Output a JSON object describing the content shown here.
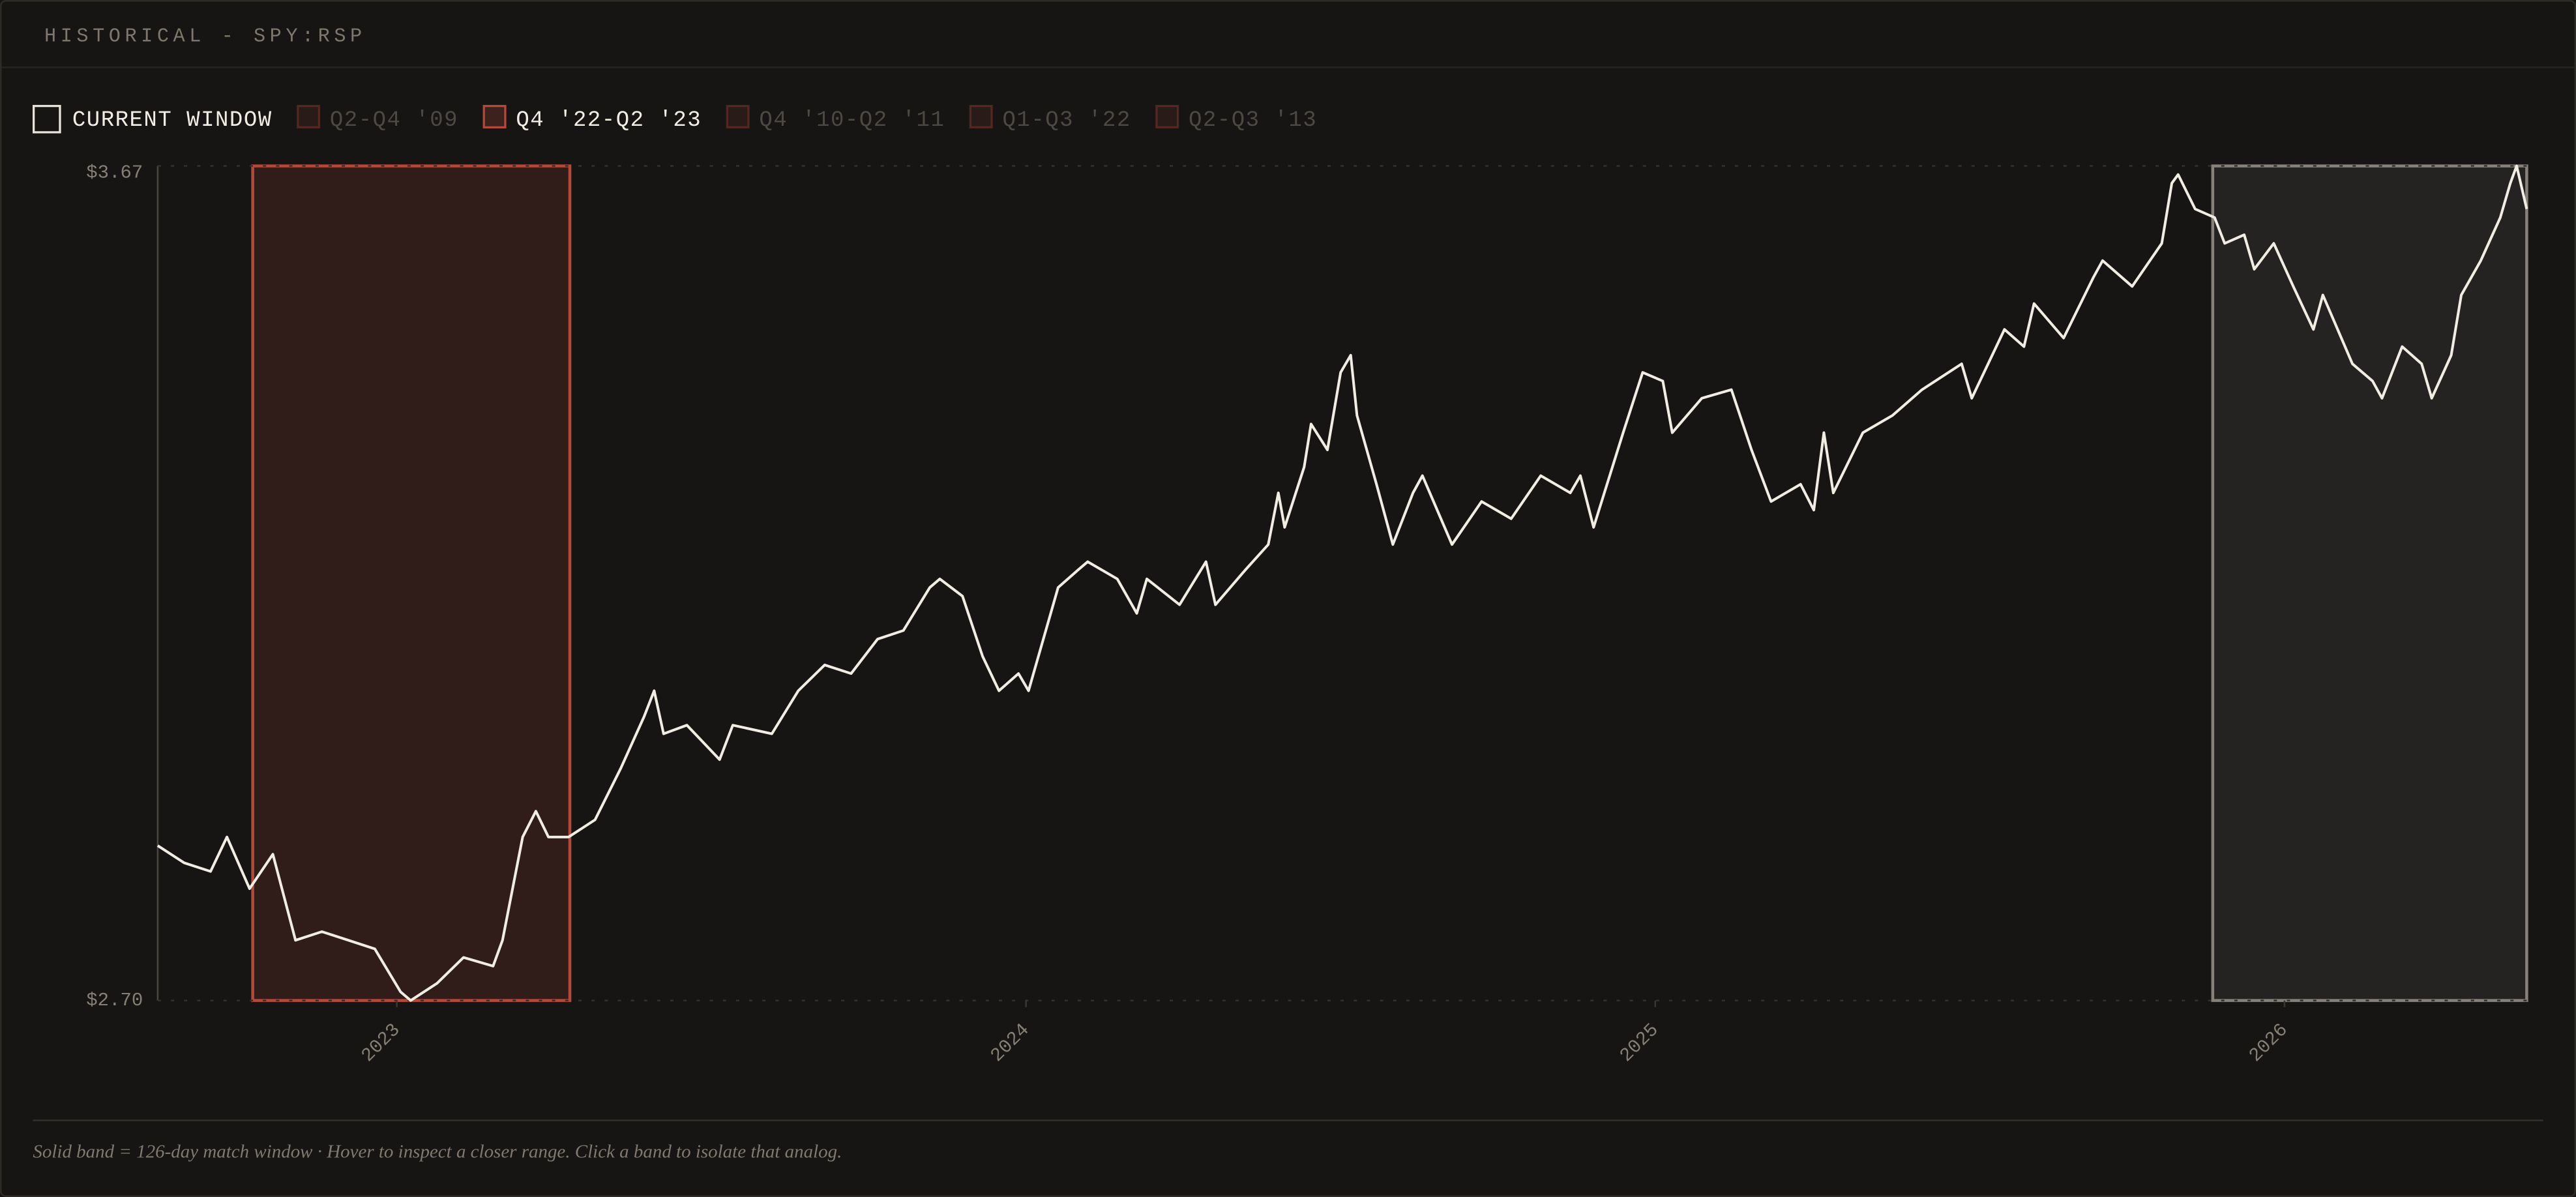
{
  "header": {
    "title": "HISTORICAL - SPY:RSP"
  },
  "chart_data": {
    "type": "line",
    "color": "#f2ede4",
    "grid": true,
    "ylim": [
      2.7,
      3.67
    ],
    "yticks": [
      {
        "value": 2.7,
        "label": "$2.70"
      },
      {
        "value": 3.67,
        "label": "$3.67"
      }
    ],
    "xlim": [
      2022.62,
      2026.385
    ],
    "xticks": [
      2023,
      2024,
      2025,
      2026
    ],
    "x": [
      2022.62,
      2022.662,
      2022.704,
      2022.73,
      2022.766,
      2022.803,
      2022.839,
      2022.881,
      2022.923,
      2022.965,
      2023.006,
      2023.022,
      2023.064,
      2023.106,
      2023.153,
      2023.168,
      2023.2,
      2023.221,
      2023.241,
      2023.273,
      2023.315,
      2023.356,
      2023.393,
      2023.409,
      2023.424,
      2023.461,
      2023.513,
      2023.534,
      2023.596,
      2023.638,
      2023.68,
      2023.722,
      2023.764,
      2023.805,
      2023.847,
      2023.863,
      2023.899,
      2023.931,
      2023.957,
      2023.988,
      2024.004,
      2024.051,
      2024.082,
      2024.098,
      2024.145,
      2024.176,
      2024.192,
      2024.244,
      2024.286,
      2024.301,
      2024.348,
      2024.385,
      2024.401,
      2024.411,
      2024.442,
      2024.453,
      2024.479,
      2024.5,
      2024.516,
      2024.526,
      2024.557,
      2024.583,
      2024.615,
      2024.63,
      2024.677,
      2024.724,
      2024.771,
      2024.818,
      2024.865,
      2024.881,
      2024.902,
      2024.949,
      2024.98,
      2025.012,
      2025.027,
      2025.074,
      2025.121,
      2025.153,
      2025.184,
      2025.231,
      2025.252,
      2025.268,
      2025.283,
      2025.33,
      2025.377,
      2025.424,
      2025.487,
      2025.503,
      2025.555,
      2025.586,
      2025.602,
      2025.649,
      2025.696,
      2025.711,
      2025.758,
      2025.805,
      2025.821,
      2025.831,
      2025.858,
      2025.889,
      2025.905,
      2025.936,
      2025.952,
      2025.983,
      2026.014,
      2026.046,
      2026.061,
      2026.108,
      2026.14,
      2026.155,
      2026.187,
      2026.218,
      2026.234,
      2026.265,
      2026.281,
      2026.312,
      2026.343,
      2026.359,
      2026.369,
      2026.385
    ],
    "values": [
      2.88,
      2.86,
      2.85,
      2.89,
      2.83,
      2.87,
      2.77,
      2.78,
      2.77,
      2.76,
      2.71,
      2.7,
      2.72,
      2.75,
      2.74,
      2.77,
      2.89,
      2.92,
      2.89,
      2.89,
      2.91,
      2.97,
      3.03,
      3.06,
      3.01,
      3.02,
      2.98,
      3.02,
      3.01,
      3.06,
      3.09,
      3.08,
      3.12,
      3.13,
      3.18,
      3.19,
      3.17,
      3.1,
      3.06,
      3.08,
      3.06,
      3.18,
      3.2,
      3.21,
      3.19,
      3.15,
      3.19,
      3.16,
      3.21,
      3.16,
      3.2,
      3.23,
      3.29,
      3.25,
      3.32,
      3.37,
      3.34,
      3.43,
      3.45,
      3.38,
      3.3,
      3.23,
      3.29,
      3.31,
      3.23,
      3.28,
      3.26,
      3.31,
      3.29,
      3.31,
      3.25,
      3.36,
      3.43,
      3.42,
      3.36,
      3.4,
      3.41,
      3.34,
      3.28,
      3.3,
      3.27,
      3.36,
      3.29,
      3.36,
      3.38,
      3.41,
      3.44,
      3.4,
      3.48,
      3.46,
      3.51,
      3.47,
      3.54,
      3.56,
      3.53,
      3.58,
      3.65,
      3.66,
      3.62,
      3.61,
      3.58,
      3.59,
      3.55,
      3.58,
      3.53,
      3.48,
      3.52,
      3.44,
      3.42,
      3.4,
      3.46,
      3.44,
      3.4,
      3.45,
      3.52,
      3.56,
      3.61,
      3.65,
      3.67,
      3.62
    ],
    "windows": [
      {
        "name": "CURRENT WINDOW",
        "color": "#e8e4dc",
        "active": true,
        "xlim": [
          2025.886,
          2026.385
        ]
      },
      {
        "name": "Q2-Q4 '09",
        "color": "#b4493a",
        "active": false
      },
      {
        "name": "Q4 '22-Q2 '23",
        "color": "#b4493a",
        "active": true,
        "xlim": [
          2022.771,
          2023.275
        ]
      },
      {
        "name": "Q4 '10-Q2 '11",
        "color": "#b4493a",
        "active": false
      },
      {
        "name": "Q1-Q3 '22",
        "color": "#b4493a",
        "active": false
      },
      {
        "name": "Q2-Q3 '13",
        "color": "#b4493a",
        "active": false
      }
    ]
  },
  "footer": {
    "note": "Solid band = 126-day match window · Hover to inspect a closer range. Click a band to isolate that analog."
  }
}
